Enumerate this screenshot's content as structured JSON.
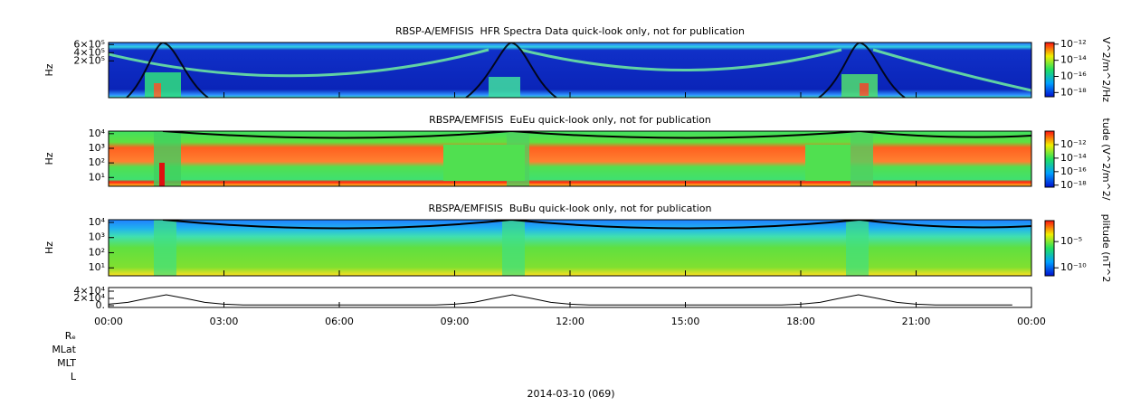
{
  "chart_data": [
    {
      "type": "spectrogram",
      "title": "RBSP-A/EMFISIS  HFR Spectra Data quick-look only, not for publication",
      "ylabel": "Hz",
      "ylim": [
        -700000,
        650000
      ],
      "log": false,
      "yticks": [
        {
          "value": 600000,
          "label": "6×10⁵"
        },
        {
          "value": 400000,
          "label": "4×10⁵"
        },
        {
          "value": 200000,
          "label": "2×10⁵"
        }
      ],
      "colorbar_label": "V^2/m^2/Hz",
      "clim": [
        3e-19,
        1.6e-12
      ],
      "clog": true,
      "cticks": [
        {
          "value": 1e-12,
          "label": "10⁻¹²"
        },
        {
          "value": 1e-14,
          "label": "10⁻¹⁴"
        },
        {
          "value": 1e-16,
          "label": "10⁻¹⁶"
        },
        {
          "value": 1e-18,
          "label": "10⁻¹⁸"
        }
      ]
    },
    {
      "type": "spectrogram",
      "title": "RBSPA/EMFISIS  EuEu quick-look only, not for publication",
      "ylabel": "Hz",
      "ylim": [
        2.5,
        15000
      ],
      "log": true,
      "yticks": [
        {
          "value": 10000,
          "label": "10⁴"
        },
        {
          "value": 1000,
          "label": "10³"
        },
        {
          "value": 100,
          "label": "10²"
        },
        {
          "value": 10,
          "label": "10¹"
        }
      ],
      "colorbar_label": "tude (V^2/m^2/",
      "clim": [
        5e-19,
        1e-10
      ],
      "clog": true,
      "cticks": [
        {
          "value": 1e-12,
          "label": "10⁻¹²"
        },
        {
          "value": 1e-14,
          "label": "10⁻¹⁴"
        },
        {
          "value": 1e-16,
          "label": "10⁻¹⁶"
        },
        {
          "value": 1e-18,
          "label": "10⁻¹⁸"
        }
      ]
    },
    {
      "type": "spectrogram",
      "title": "RBSPA/EMFISIS  BuBu quick-look only, not for publication",
      "ylabel": "Hz",
      "ylim": [
        3,
        15000
      ],
      "log": true,
      "yticks": [
        {
          "value": 10000,
          "label": "10⁴"
        },
        {
          "value": 1000,
          "label": "10³"
        },
        {
          "value": 100,
          "label": "10²"
        },
        {
          "value": 10,
          "label": "10¹"
        }
      ],
      "colorbar_label": "plitude (nT^2",
      "clim": [
        3e-12,
        0.1
      ],
      "clog": true,
      "cticks": [
        {
          "value": 1e-05,
          "label": "10⁻⁵"
        },
        {
          "value": 1e-10,
          "label": "10⁻¹⁰"
        }
      ]
    },
    {
      "type": "line",
      "ylim": [
        -5000,
        50000
      ],
      "yticks": [
        {
          "value": 40000,
          "label": "4×10⁴"
        },
        {
          "value": 20000,
          "label": "2×10⁴"
        },
        {
          "value": 0,
          "label": "0."
        }
      ],
      "xticks": [
        "00:00",
        "03:00",
        "06:00",
        "09:00",
        "12:00",
        "15:00",
        "18:00",
        "21:00",
        "00:00"
      ],
      "x": [
        "00:00",
        "00:30",
        "01:00",
        "01:30",
        "02:00",
        "02:30",
        "03:00",
        "03:30",
        "04:00",
        "04:30",
        "05:00",
        "05:30",
        "06:00",
        "06:30",
        "07:00",
        "07:30",
        "08:00",
        "08:30",
        "09:00",
        "09:30",
        "10:00",
        "10:30",
        "11:00",
        "11:30",
        "12:00",
        "12:30",
        "13:00",
        "13:30",
        "14:00",
        "14:30",
        "15:00",
        "15:30",
        "16:00",
        "16:30",
        "17:00",
        "17:30",
        "18:00",
        "18:30",
        "19:00",
        "19:30",
        "20:00",
        "20:30",
        "21:00",
        "21:30",
        "22:00",
        "22:30",
        "23:00",
        "23:30"
      ],
      "values": [
        4000,
        9000,
        20000,
        30000,
        20000,
        9000,
        4000,
        2000,
        2000,
        2000,
        2000,
        2000,
        2000,
        2000,
        2000,
        2000,
        2000,
        2000,
        4000,
        9000,
        20000,
        30000,
        20000,
        9000,
        4000,
        2000,
        2000,
        2000,
        2000,
        2000,
        2000,
        2000,
        2000,
        2000,
        2000,
        2000,
        4000,
        9000,
        20000,
        30000,
        20000,
        9000,
        4000,
        2000,
        2000,
        2000,
        2000,
        2000
      ],
      "color": "#000000"
    }
  ],
  "ephemeris_labels": [
    "Rₑ",
    "MLat",
    "MLT",
    "L"
  ],
  "date_label": "2014-03-10 (069)"
}
